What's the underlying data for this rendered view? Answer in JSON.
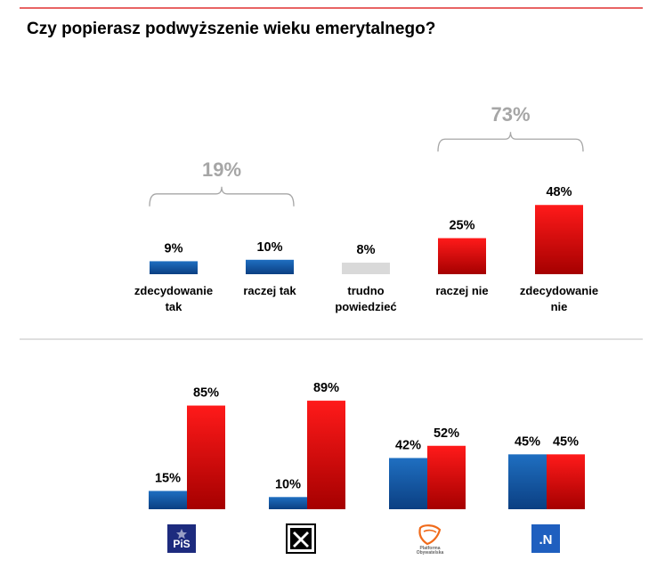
{
  "title": "Czy popierasz podwyższenie wieku emerytalnego?",
  "colors": {
    "blue_top": "#1f6fc1",
    "blue_bottom": "#0b3f82",
    "red_top": "#ff1a1a",
    "red_bottom": "#a50000",
    "grey": "#d9d9d9",
    "rule_red": "#e03030",
    "divider": "#bfbfbf"
  },
  "chart_data": [
    {
      "type": "bar",
      "title": "Czy popierasz podwyższenie wieku emerytalnego?",
      "categories": [
        [
          "zdecydowanie",
          "tak"
        ],
        [
          "raczej tak"
        ],
        [
          "trudno",
          "powiedzieć"
        ],
        [
          "raczej nie"
        ],
        [
          "zdecydowanie",
          "nie"
        ]
      ],
      "values": [
        9,
        10,
        8,
        25,
        48
      ],
      "value_labels": [
        "9%",
        "10%",
        "8%",
        "25%",
        "48%"
      ],
      "bar_colors": [
        "blue",
        "blue",
        "grey",
        "red",
        "red"
      ],
      "group_totals": [
        {
          "label": "19%",
          "from": 0,
          "to": 1
        },
        {
          "label": "73%",
          "from": 3,
          "to": 4
        }
      ]
    },
    {
      "type": "bar",
      "categories": [
        "PiS",
        "Kukiz'15",
        "Platforma Obywatelska",
        ".N"
      ],
      "series": [
        {
          "color": "blue",
          "values": [
            15,
            10,
            42,
            45
          ],
          "labels": [
            "15%",
            "10%",
            "42%",
            "45%"
          ]
        },
        {
          "color": "red",
          "values": [
            85,
            89,
            52,
            45
          ],
          "labels": [
            "85%",
            "89%",
            "52%",
            "45%"
          ]
        }
      ]
    }
  ],
  "logos": {
    "pis": {
      "icon": "pis-logo",
      "text": "PiS"
    },
    "kukiz": {
      "icon": "kukiz-logo"
    },
    "po": {
      "icon": "po-logo",
      "text1": "Platforma",
      "text2": "Obywatelska"
    },
    "n": {
      "icon": "nowoczesna-logo",
      "text": ".N"
    }
  }
}
